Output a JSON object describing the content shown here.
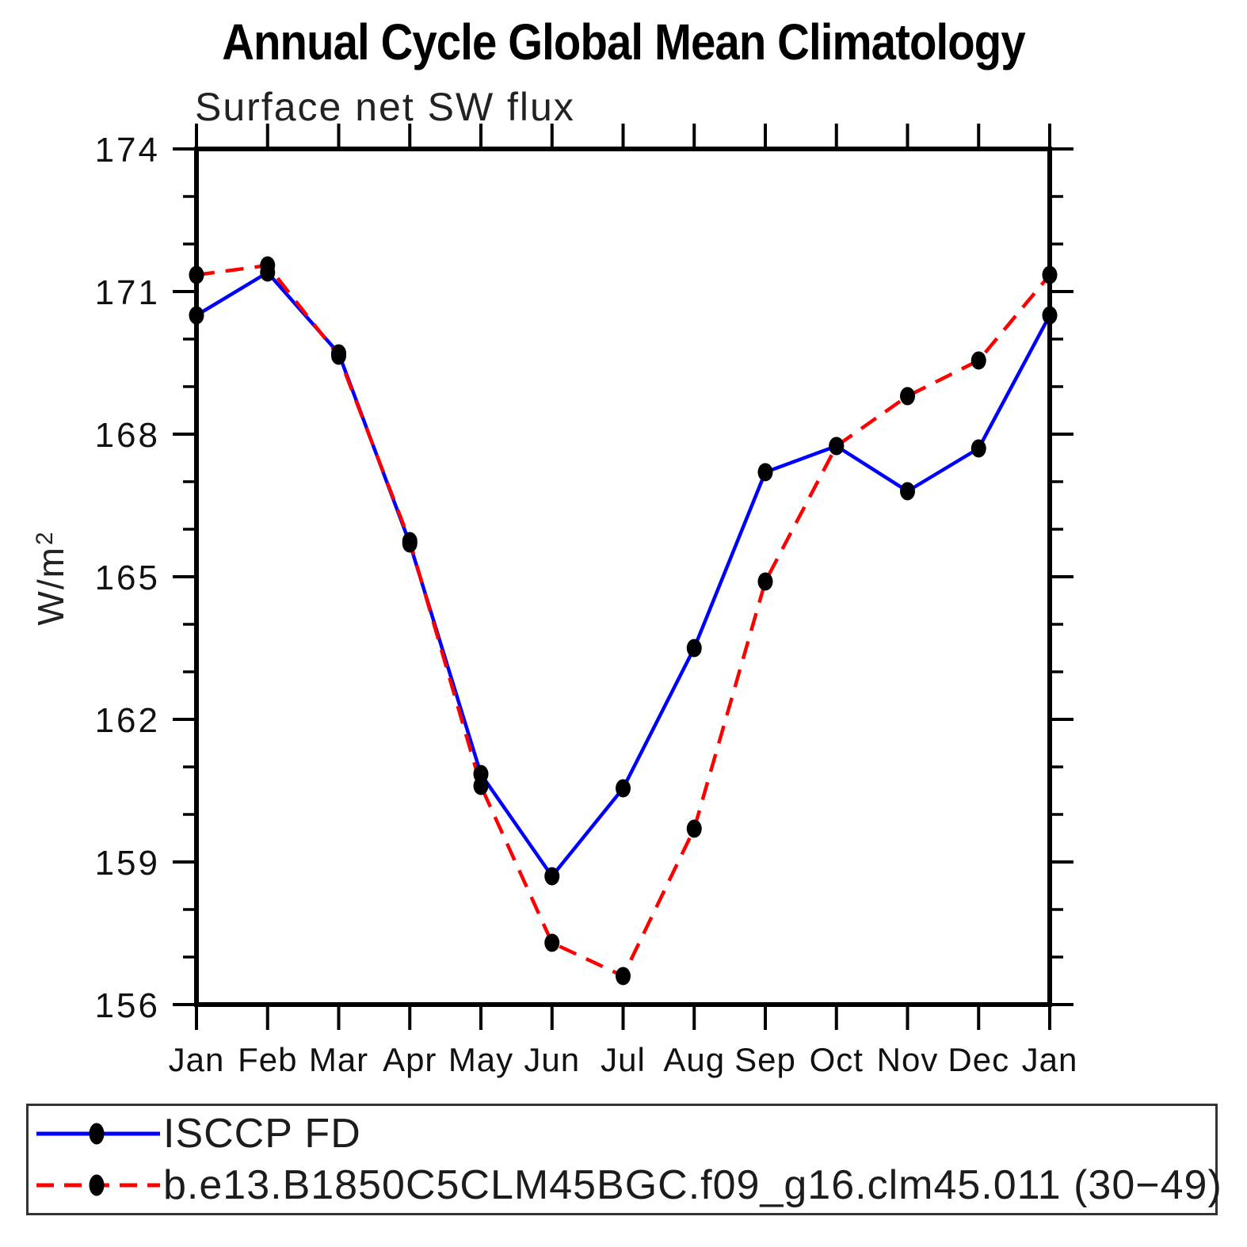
{
  "title": "Annual Cycle Global Mean Climatology",
  "subtitle": "Surface net SW flux",
  "ylabel_display": {
    "base": "W/m",
    "exp": "2"
  },
  "colors": {
    "isccp_line": "#0000ff",
    "model_line": "#ff0000",
    "marker": "#000000",
    "axis": "#000000"
  },
  "chart_data": {
    "type": "line",
    "title": "Annual Cycle Global Mean Climatology",
    "subtitle": "Surface net SW flux",
    "xlabel": "",
    "ylabel": "W/m²",
    "categories": [
      "Jan",
      "Feb",
      "Mar",
      "Apr",
      "May",
      "Jun",
      "Jul",
      "Aug",
      "Sep",
      "Oct",
      "Nov",
      "Dec",
      "Jan"
    ],
    "ylim": [
      156,
      174
    ],
    "yticks": [
      156,
      159,
      162,
      165,
      168,
      171,
      174
    ],
    "ytick_minor_step": 1,
    "grid": false,
    "legend_position": "bottom-box",
    "series": [
      {
        "name": "ISCCP FD",
        "color": "#0000ff",
        "line_style": "solid",
        "marker": "filled-circle",
        "marker_color": "#000000",
        "values": [
          170.5,
          171.4,
          169.7,
          165.7,
          160.85,
          158.7,
          160.55,
          163.5,
          167.2,
          167.75,
          166.8,
          167.7,
          170.5
        ]
      },
      {
        "name": "b.e13.B1850C5CLM45BGC.f09_g16.clm45.011 (30−49)",
        "color": "#ff0000",
        "line_style": "dashed",
        "marker": "filled-circle",
        "marker_color": "#000000",
        "values": [
          171.35,
          171.55,
          169.65,
          165.75,
          160.6,
          157.3,
          156.6,
          159.7,
          164.9,
          167.75,
          168.8,
          169.55,
          171.35
        ]
      }
    ]
  }
}
